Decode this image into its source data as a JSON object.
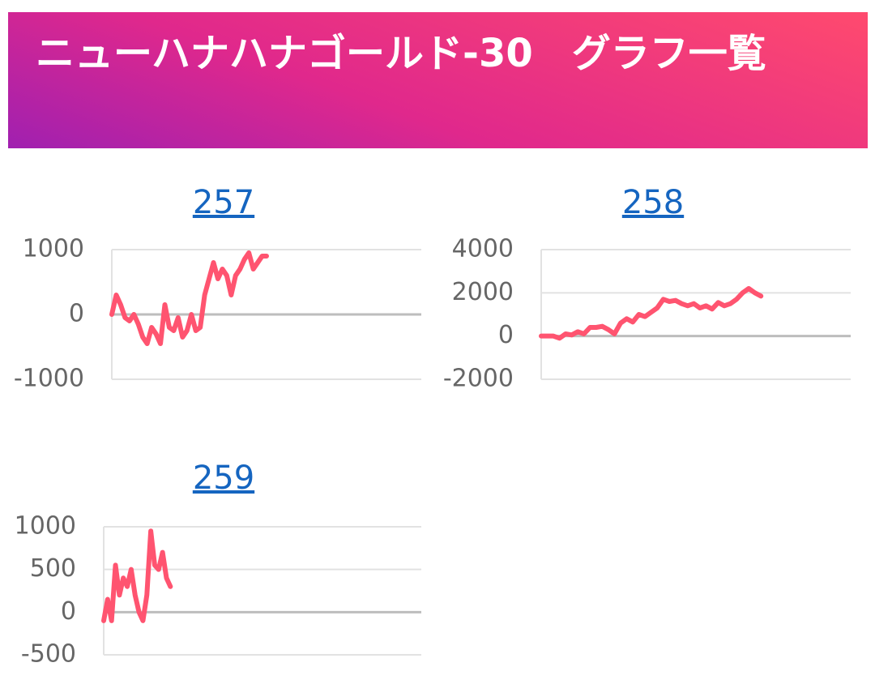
{
  "header": {
    "title": "ニューハナハナゴールド-30　グラフ一覧"
  },
  "chart_data": [
    {
      "type": "line",
      "title": "257",
      "color": "#ff5470",
      "grid": true,
      "ylim": [
        -1000,
        1000
      ],
      "yticks": [
        1000,
        0,
        -1000
      ],
      "values": [
        0,
        300,
        150,
        -50,
        -100,
        0,
        -150,
        -350,
        -450,
        -200,
        -300,
        -450,
        150,
        -200,
        -250,
        -50,
        -350,
        -250,
        0,
        -250,
        -200,
        300,
        550,
        800,
        550,
        700,
        600,
        300,
        600,
        700,
        850,
        950,
        700,
        800,
        900,
        900
      ]
    },
    {
      "type": "line",
      "title": "258",
      "color": "#ff5470",
      "grid": true,
      "ylim": [
        -2000,
        4000
      ],
      "yticks": [
        4000,
        2000,
        0,
        -2000
      ],
      "values": [
        0,
        0,
        0,
        -100,
        100,
        50,
        200,
        100,
        400,
        400,
        450,
        300,
        100,
        600,
        800,
        650,
        1000,
        900,
        1100,
        1300,
        1700,
        1600,
        1650,
        1500,
        1400,
        1500,
        1300,
        1400,
        1250,
        1550,
        1400,
        1500,
        1700,
        2000,
        2200,
        2000,
        1850
      ]
    },
    {
      "type": "line",
      "title": "259",
      "color": "#ff5470",
      "grid": true,
      "ylim": [
        -500,
        1000
      ],
      "yticks": [
        1000,
        500,
        0,
        -500
      ],
      "values": [
        -100,
        150,
        -100,
        550,
        200,
        400,
        300,
        500,
        200,
        0,
        -100,
        200,
        950,
        550,
        500,
        700,
        400,
        300
      ]
    }
  ]
}
